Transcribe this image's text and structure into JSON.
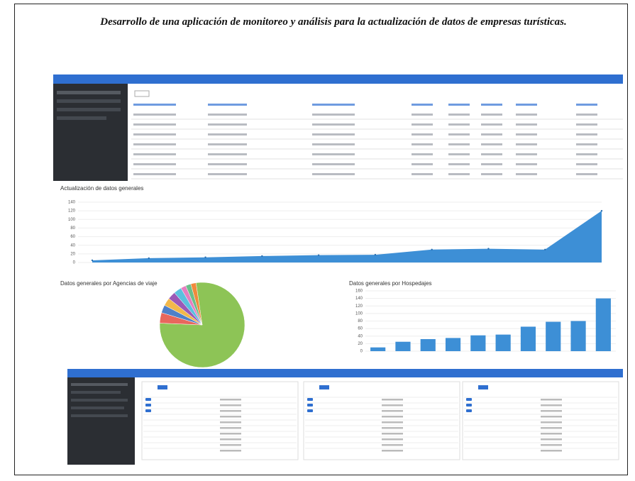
{
  "title": "Desarrollo de una aplicación de monitoreo y análisis para la actualización de datos de empresas turísticas.",
  "chart_data": [
    {
      "type": "area",
      "title": "Actualización de datos generales",
      "color": "#3d8fd6",
      "values": [
        5,
        10,
        12,
        15,
        17,
        18,
        30,
        32,
        30,
        120
      ],
      "ylim": [
        0,
        140
      ],
      "yticks": [
        0,
        20,
        40,
        60,
        80,
        100,
        120,
        140
      ]
    },
    {
      "type": "pie",
      "title": "Datos generales por Agencias de viaje",
      "values": [
        78,
        4,
        3,
        3,
        3,
        3,
        2,
        2,
        2
      ],
      "colors": [
        "#8dc456",
        "#e8675d",
        "#4f80c9",
        "#f2b84b",
        "#9b59b6",
        "#5bc0de",
        "#e67ec0",
        "#6abf8a",
        "#f08a3c"
      ]
    },
    {
      "type": "bar",
      "title": "Datos generales por Hospedajes",
      "color": "#3d8fd6",
      "values": [
        10,
        25,
        32,
        35,
        42,
        44,
        65,
        78,
        80,
        140
      ],
      "ylim": [
        0,
        160
      ],
      "yticks": [
        0,
        20,
        40,
        60,
        80,
        100,
        120,
        140,
        160
      ]
    }
  ]
}
